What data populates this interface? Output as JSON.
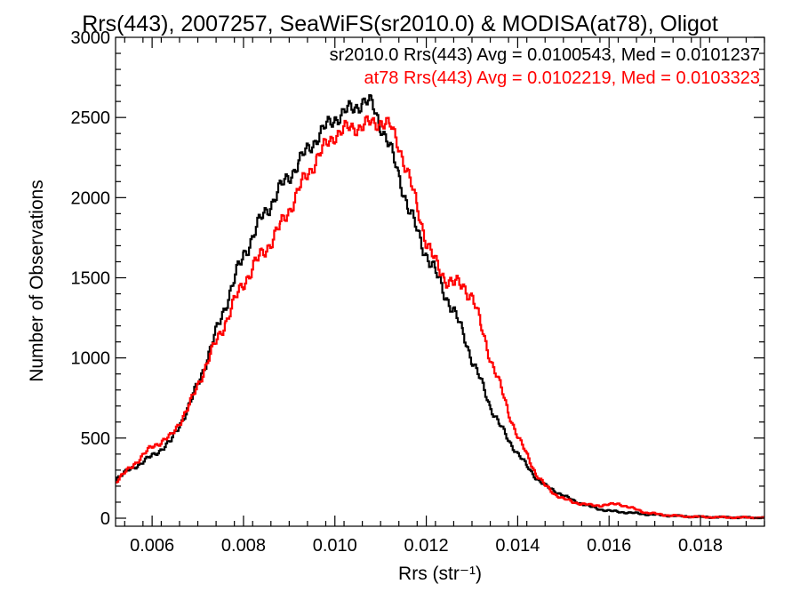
{
  "chart_data": {
    "type": "line",
    "step": true,
    "title": "Rrs(443), 2007257, SeaWiFS(sr2010.0) & MODISA(at78), Oligot",
    "xlabel": "Rrs (str⁻¹)",
    "ylabel": "Number of Observations",
    "xlim": [
      0.0052,
      0.0194
    ],
    "ylim": [
      -50,
      3000
    ],
    "xticks": [
      0.006,
      0.008,
      0.01,
      0.012,
      0.014,
      0.016,
      0.018
    ],
    "xtick_labels": [
      "0.006",
      "0.008",
      "0.010",
      "0.012",
      "0.014",
      "0.016",
      "0.018"
    ],
    "yticks": [
      0,
      500,
      1000,
      1500,
      2000,
      2500,
      3000
    ],
    "ytick_labels": [
      "0",
      "500",
      "1000",
      "1500",
      "2000",
      "2500",
      "3000"
    ],
    "grid": false,
    "annotations": [
      {
        "text": "sr2010.0 Rrs(443) Avg = 0.0100543, Med = 0.0101237",
        "color": "#000000"
      },
      {
        "text": "at78 Rrs(443) Avg = 0.0102219, Med = 0.0103323",
        "color": "#ff0000"
      }
    ],
    "series": [
      {
        "name": "sr2010.0",
        "color": "#000000",
        "x": [
          0.0052,
          0.0056,
          0.006,
          0.0064,
          0.0068,
          0.0072,
          0.0076,
          0.008,
          0.0084,
          0.0088,
          0.0092,
          0.0096,
          0.01,
          0.0104,
          0.0106,
          0.0108,
          0.011,
          0.0112,
          0.0114,
          0.0116,
          0.0118,
          0.012,
          0.0122,
          0.0124,
          0.0126,
          0.0128,
          0.013,
          0.0132,
          0.0134,
          0.0136,
          0.0138,
          0.014,
          0.0142,
          0.0144,
          0.0146,
          0.0148,
          0.015,
          0.0152,
          0.0154,
          0.0156,
          0.0158,
          0.016,
          0.0164,
          0.0168,
          0.0172,
          0.0176,
          0.018,
          0.0186,
          0.0194
        ],
        "y": [
          250,
          320,
          390,
          480,
          700,
          1000,
          1340,
          1650,
          1880,
          2060,
          2220,
          2380,
          2500,
          2560,
          2600,
          2580,
          2450,
          2300,
          2130,
          1930,
          1780,
          1640,
          1520,
          1400,
          1280,
          1150,
          980,
          840,
          690,
          580,
          480,
          400,
          320,
          250,
          200,
          170,
          140,
          110,
          90,
          70,
          55,
          45,
          35,
          25,
          18,
          12,
          8,
          5,
          3
        ]
      },
      {
        "name": "at78",
        "color": "#ff0000",
        "x": [
          0.0052,
          0.0056,
          0.006,
          0.0064,
          0.0068,
          0.0072,
          0.0076,
          0.008,
          0.0084,
          0.0088,
          0.0092,
          0.0096,
          0.01,
          0.0104,
          0.0106,
          0.0108,
          0.011,
          0.0112,
          0.0114,
          0.0116,
          0.0118,
          0.012,
          0.0122,
          0.0124,
          0.0126,
          0.0128,
          0.013,
          0.0132,
          0.0134,
          0.0136,
          0.0138,
          0.014,
          0.0142,
          0.0144,
          0.0146,
          0.0148,
          0.015,
          0.0152,
          0.0154,
          0.0156,
          0.0158,
          0.016,
          0.0162,
          0.0164,
          0.0168,
          0.0172,
          0.0176,
          0.018,
          0.0186,
          0.0194
        ],
        "y": [
          230,
          340,
          450,
          510,
          700,
          980,
          1230,
          1480,
          1650,
          1820,
          2050,
          2250,
          2400,
          2440,
          2450,
          2460,
          2480,
          2440,
          2320,
          2130,
          1930,
          1720,
          1580,
          1500,
          1460,
          1450,
          1380,
          1180,
          990,
          830,
          650,
          500,
          390,
          270,
          200,
          150,
          120,
          100,
          90,
          80,
          80,
          85,
          90,
          70,
          35,
          20,
          12,
          8,
          5,
          3
        ]
      }
    ]
  }
}
